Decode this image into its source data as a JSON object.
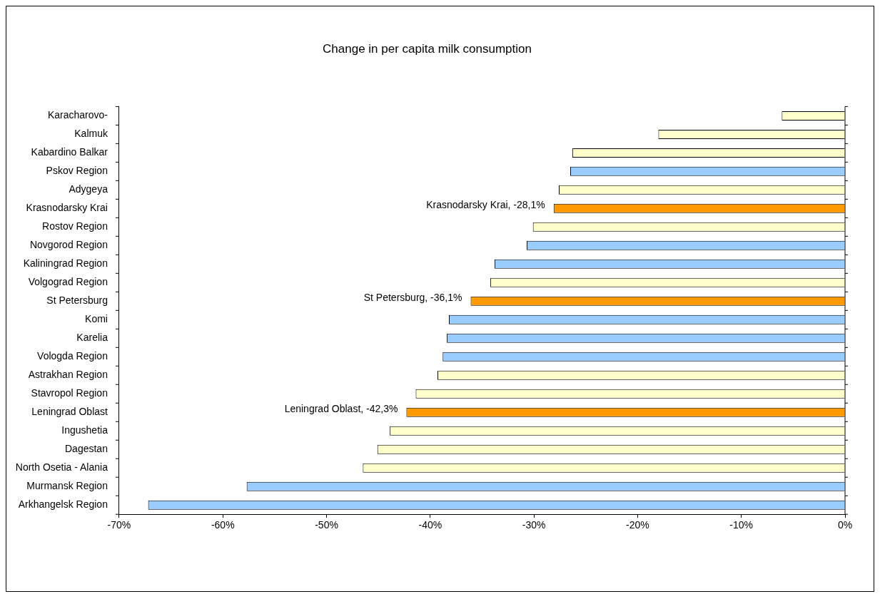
{
  "chart_data": {
    "type": "bar",
    "orientation": "horizontal",
    "title": "Change in per capita milk consumption",
    "categories": [
      "Karacharovo-",
      "Kalmuk",
      "Kabardino Balkar",
      "Pskov Region",
      "Adygeya",
      "Krasnodarsky Krai",
      "Rostov Region",
      "Novgorod Region",
      "Kaliningrad Region",
      "Volgograd Region",
      "St Petersburg",
      "Komi",
      "Karelia",
      "Vologda Region",
      "Astrakhan Region",
      "Stavropol Region",
      "Leningrad Oblast",
      "Ingushetia",
      "Dagestan",
      "North Osetia - Alania",
      "Murmansk Region",
      "Arkhangelsk Region"
    ],
    "values": [
      -6.1,
      -18,
      -26.3,
      -26.5,
      -27.6,
      -28.1,
      -30.1,
      -30.7,
      -33.8,
      -34.2,
      -36.1,
      -38.2,
      -38.4,
      -38.8,
      -39.3,
      -41.4,
      -42.3,
      -43.9,
      -45.1,
      -46.5,
      -57.7,
      -67.2
    ],
    "colors": [
      "#ffffcc",
      "#ffffcc",
      "#ffffcc",
      "#99ccff",
      "#ffffcc",
      "#ff9900",
      "#ffffcc",
      "#99ccff",
      "#99ccff",
      "#ffffcc",
      "#ff9900",
      "#99ccff",
      "#99ccff",
      "#99ccff",
      "#ffffcc",
      "#ffffcc",
      "#ff9900",
      "#ffffcc",
      "#ffffcc",
      "#ffffcc",
      "#99ccff",
      "#99ccff"
    ],
    "xlim": [
      -70,
      0
    ],
    "xticks": [
      {
        "value": -70,
        "label": "-70%"
      },
      {
        "value": -60,
        "label": "-60%"
      },
      {
        "value": -50,
        "label": "-50%"
      },
      {
        "value": -40,
        "label": "-40%"
      },
      {
        "value": -30,
        "label": "-30%"
      },
      {
        "value": -20,
        "label": "-20%"
      },
      {
        "value": -10,
        "label": "-10%"
      },
      {
        "value": 0,
        "label": "0%"
      }
    ],
    "annotations": [
      {
        "text": "Krasnodarsky Krai, -28,1%",
        "x": -28.1,
        "y": "Krasnodarsky Krai"
      },
      {
        "text": "St Petersburg, -36,1%",
        "x": -36.1,
        "y": "St Petersburg"
      },
      {
        "text": "Leningrad Oblast, -42,3%",
        "x": -42.3,
        "y": "Leningrad Oblast"
      }
    ],
    "grid": false,
    "legend": false
  }
}
